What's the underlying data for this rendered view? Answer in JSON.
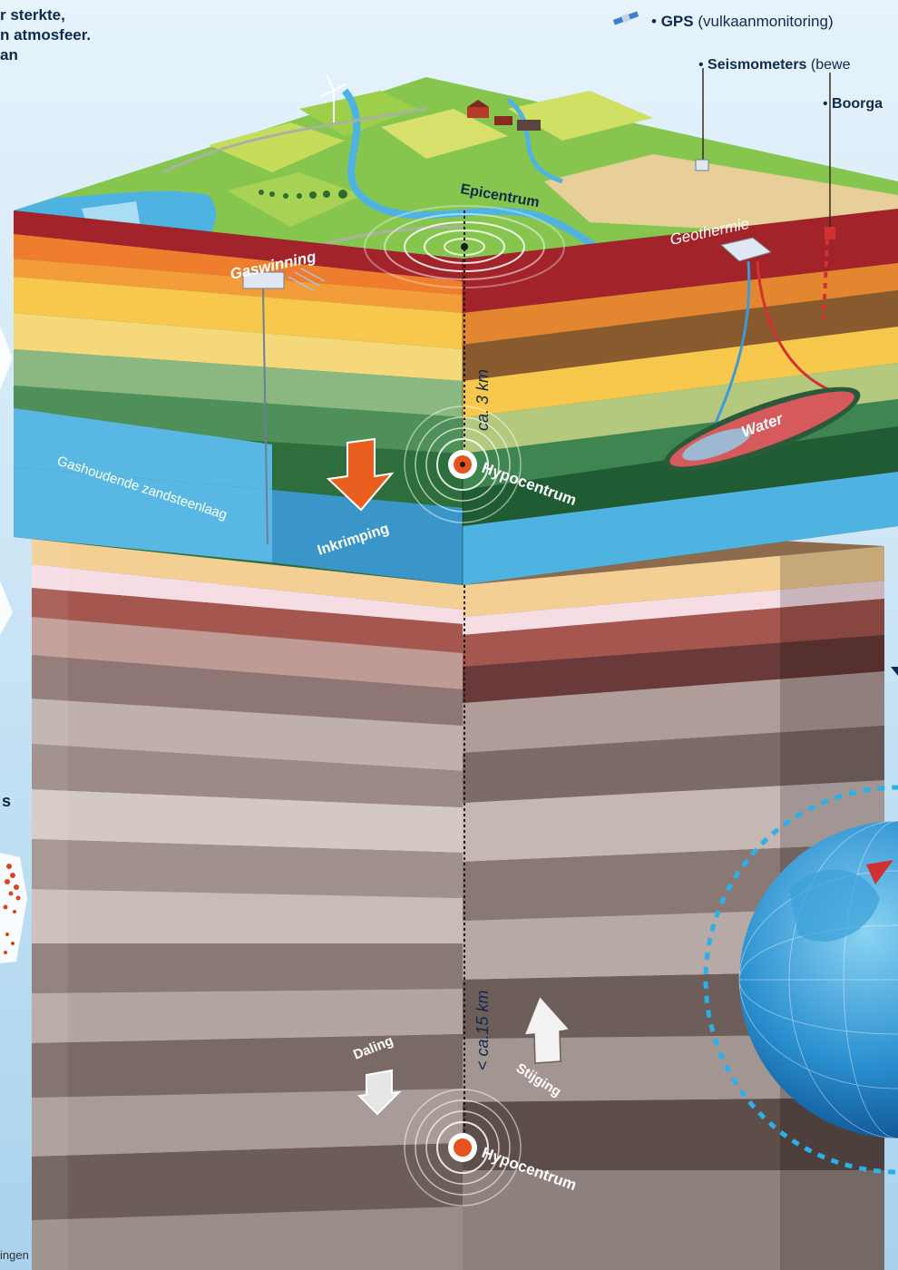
{
  "header": {
    "intro_lines": [
      "r sterkte,",
      "n atmosfeer.",
      "an"
    ]
  },
  "monitoring": {
    "gps_bold": "GPS",
    "gps_rest": "(vulkaanmonitoring)",
    "seismo_bold": "Seismometers",
    "seismo_rest": "(bewe",
    "borehole_bold": "Boorga"
  },
  "shallow": {
    "gas_label": "Gaswinning",
    "geothermal_label": "Geothermie",
    "epicenter_label": "Epicentrum",
    "depth_label": "ca. 3 km",
    "hypocenter_label": "Hypocentrum",
    "shrink_label": "Inkrimping",
    "reservoir_label": "Gashoudende zandsteenlaag",
    "water_label": "Water"
  },
  "deep": {
    "depth_label": "< ca.15 km",
    "subsidence_label": "Daling",
    "uplift_label": "Stijging",
    "hypocenter_label": "Hypocentrum"
  },
  "left_panel": {
    "fragment_s": "s",
    "bottom_fragment": "ingen"
  },
  "colors": {
    "sky": "#cfe6f6",
    "grass": "#7cc24a",
    "sand": "#e8cf9a",
    "water": "#4fb3e2",
    "red_layer": "#a3232b",
    "orange_layer": "#ef7d2d",
    "yellow_layer": "#f7c84b",
    "green_layer": "#5c9f5f",
    "reservoir": "#59b8e3",
    "marker": "#e7531e",
    "text_dark": "#102a4c"
  }
}
